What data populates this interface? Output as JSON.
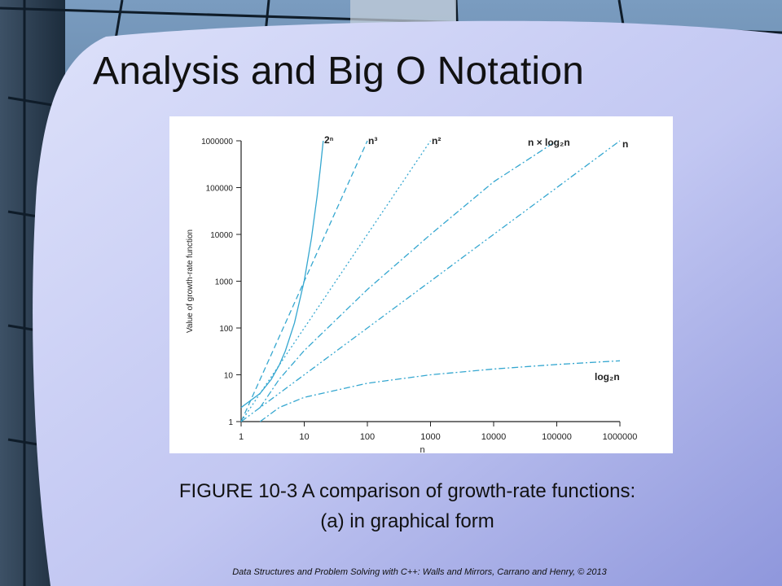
{
  "slide": {
    "title": "Analysis and Big O Notation",
    "caption_line1": "FIGURE 10-3 A comparison of growth-rate functions:",
    "caption_line2": "(a) in graphical form",
    "footer": "Data Structures and Problem Solving with C++: Walls and Mirrors, Carrano and Henry, © 2013"
  },
  "colors": {
    "accent": "#35a7d0",
    "panel": "#aeb6ec",
    "panel_light": "#dde1fa",
    "background_dark": "#1e3348"
  },
  "chart_data": {
    "type": "line",
    "xscale": "log",
    "yscale": "log",
    "xlim": [
      1,
      1000000
    ],
    "ylim": [
      1,
      1000000
    ],
    "x_ticks": [
      "1",
      "10",
      "100",
      "1000",
      "10000",
      "100000",
      "1000000"
    ],
    "y_ticks": [
      "1",
      "10",
      "100",
      "1000",
      "10000",
      "100000",
      "1000000"
    ],
    "xlabel": "n",
    "ylabel": "Value of growth-rate function",
    "grid": false,
    "series": [
      {
        "name": "2ⁿ",
        "dash": "solid",
        "x": [
          1,
          2,
          3,
          4,
          5,
          7,
          10,
          13,
          16,
          18,
          20
        ],
        "y": [
          2,
          4,
          8,
          16,
          32,
          128,
          1024,
          8192,
          65536,
          262144,
          1000000
        ]
      },
      {
        "name": "n³",
        "dash": "dashed",
        "x": [
          1,
          10,
          100
        ],
        "y": [
          1,
          1000,
          1000000
        ]
      },
      {
        "name": "n²",
        "dash": "dotted",
        "x": [
          1,
          10,
          100,
          1000
        ],
        "y": [
          1,
          100,
          10000,
          1000000
        ]
      },
      {
        "name": "n × log₂n",
        "dash": "dashdot",
        "x": [
          2,
          4,
          10,
          100,
          1000,
          10000,
          100000
        ],
        "y": [
          2,
          8,
          33,
          664,
          9966,
          132877,
          1000000
        ]
      },
      {
        "name": "n",
        "dash": "dashdotdot",
        "x": [
          1,
          1000000
        ],
        "y": [
          1,
          1000000
        ]
      },
      {
        "name": "log₂n",
        "dash": "dashdot",
        "x": [
          2,
          4,
          10,
          100,
          1000,
          10000,
          100000,
          1000000
        ],
        "y": [
          1,
          2,
          3.3,
          6.6,
          10,
          13.3,
          16.6,
          19.9
        ]
      }
    ]
  }
}
